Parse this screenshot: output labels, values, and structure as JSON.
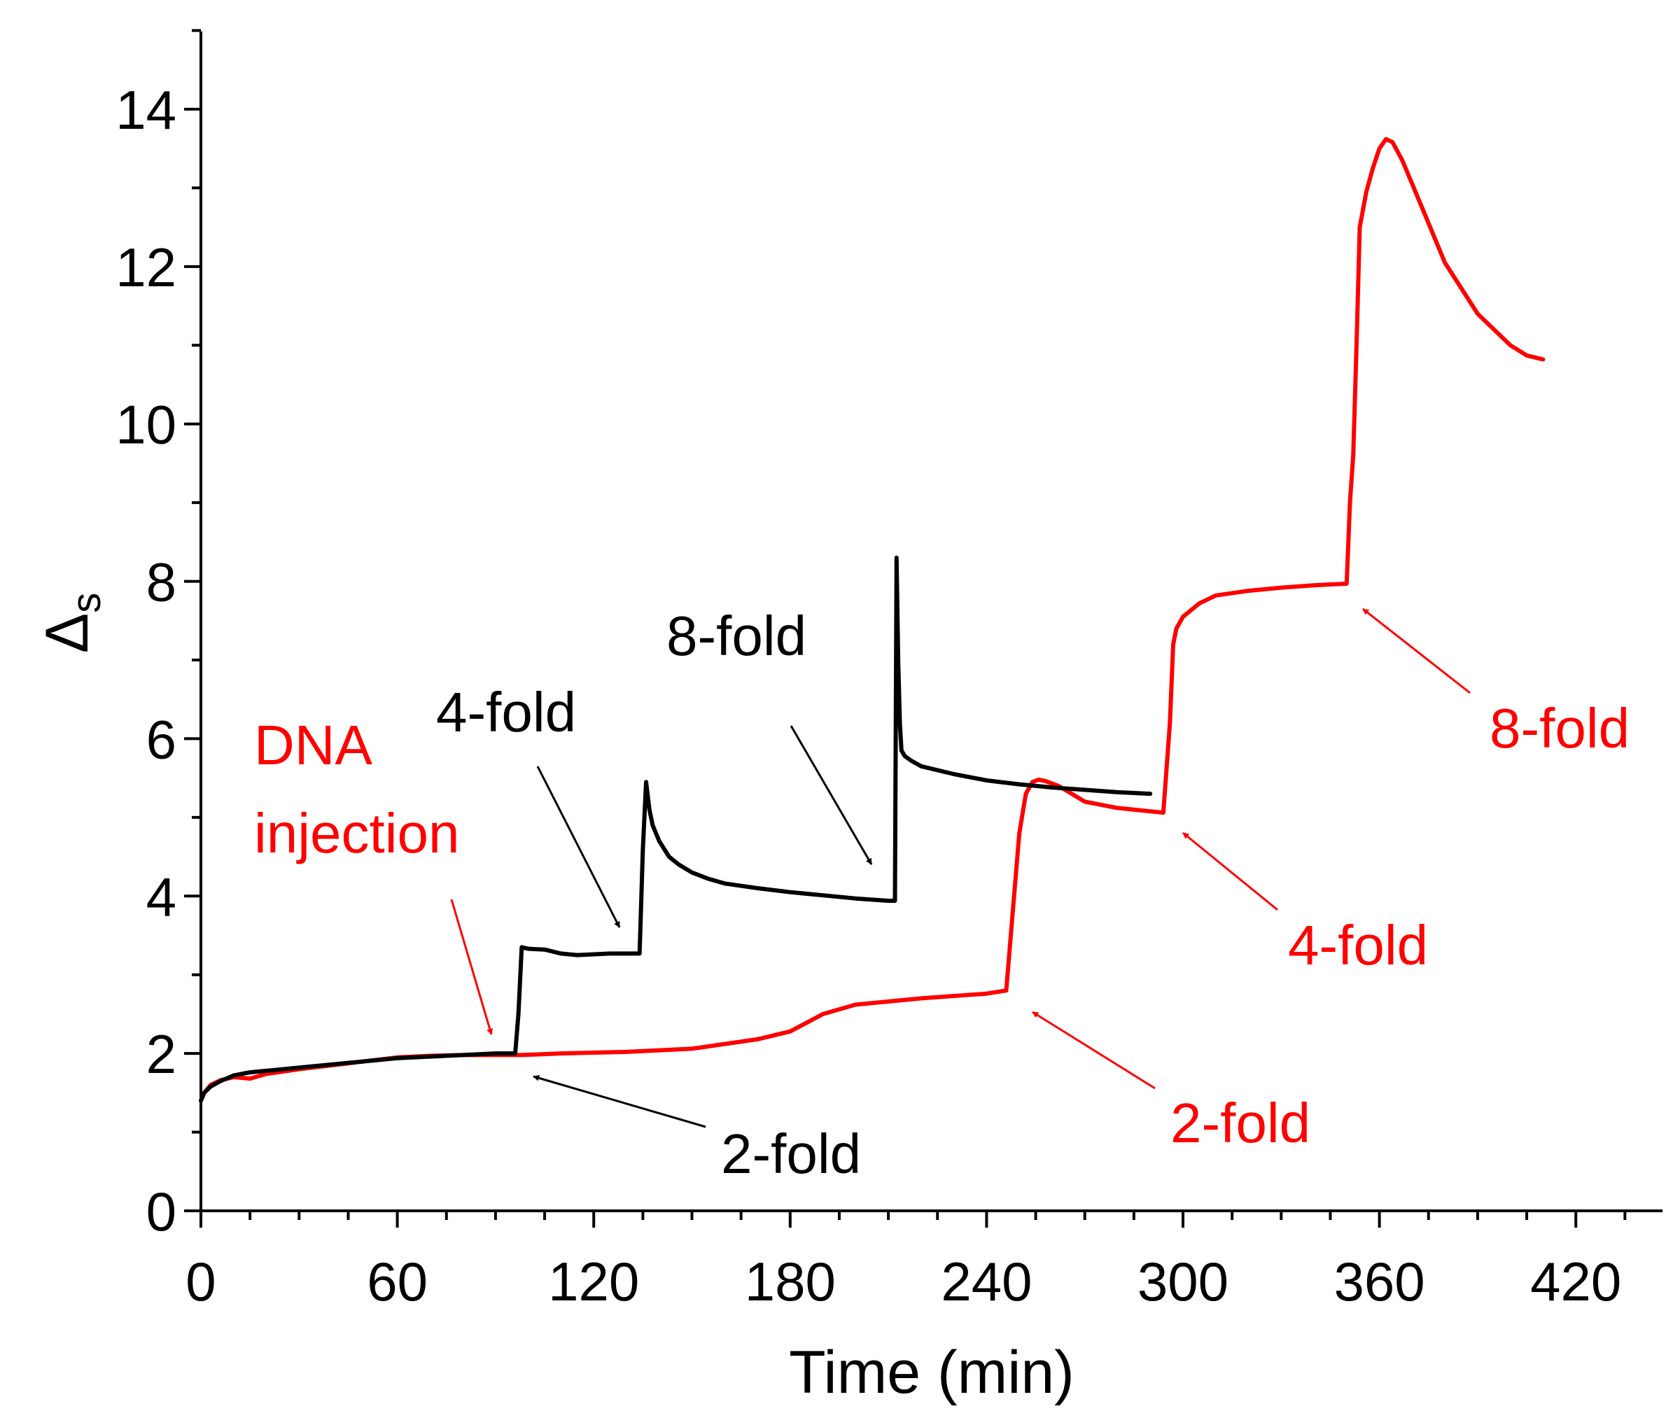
{
  "chart_data": {
    "type": "line",
    "title": "",
    "xlabel": "Time (min)",
    "ylabel": "Δ",
    "ylabel_subscript": "s",
    "xlim": [
      0,
      450
    ],
    "ylim": [
      0,
      15
    ],
    "xticks": [
      0,
      60,
      120,
      180,
      240,
      300,
      360,
      420
    ],
    "xtick_labels": [
      "0",
      "60",
      "120",
      "180",
      "240",
      "300",
      "360",
      "420"
    ],
    "yticks": [
      0,
      2,
      4,
      6,
      8,
      10,
      12,
      14
    ],
    "ytick_labels": [
      "0",
      "2",
      "4",
      "6",
      "8",
      "10",
      "12",
      "14"
    ],
    "grid": false,
    "series": [
      {
        "name": "black",
        "color": "#000000",
        "x": [
          0,
          1,
          3,
          6,
          10,
          15,
          20,
          30,
          40,
          50,
          60,
          70,
          80,
          90,
          96,
          97,
          98,
          100,
          105,
          110,
          115,
          120,
          125,
          130,
          134,
          135,
          136,
          137,
          138,
          140,
          143,
          146,
          150,
          155,
          160,
          170,
          180,
          190,
          200,
          210,
          212,
          212.5,
          213,
          213.5,
          214,
          215,
          217,
          220,
          230,
          240,
          250,
          260,
          270,
          280,
          290
        ],
        "values": [
          1.4,
          1.5,
          1.58,
          1.65,
          1.72,
          1.76,
          1.78,
          1.82,
          1.86,
          1.9,
          1.94,
          1.96,
          1.98,
          2.0,
          2.0,
          2.5,
          3.35,
          3.33,
          3.32,
          3.27,
          3.25,
          3.26,
          3.27,
          3.27,
          3.27,
          4.6,
          5.45,
          5.1,
          4.9,
          4.7,
          4.5,
          4.4,
          4.3,
          4.22,
          4.16,
          4.1,
          4.05,
          4.01,
          3.97,
          3.94,
          3.94,
          8.3,
          7.0,
          6.2,
          5.85,
          5.78,
          5.72,
          5.65,
          5.55,
          5.47,
          5.42,
          5.38,
          5.35,
          5.32,
          5.3
        ]
      },
      {
        "name": "red",
        "color": "#ff0000",
        "x": [
          0,
          1,
          3,
          6,
          10,
          15,
          20,
          30,
          40,
          50,
          60,
          70,
          80,
          90,
          98,
          110,
          130,
          150,
          170,
          180,
          190,
          200,
          220,
          240,
          246,
          248,
          250,
          252,
          254,
          256,
          258,
          262,
          266,
          270,
          280,
          294,
          296,
          297,
          298,
          300,
          305,
          310,
          320,
          330,
          340,
          350,
          351,
          352,
          353,
          354,
          356,
          358,
          360,
          362,
          364,
          367,
          370,
          375,
          380,
          390,
          400,
          405,
          410
        ],
        "values": [
          1.4,
          1.5,
          1.6,
          1.66,
          1.7,
          1.68,
          1.74,
          1.8,
          1.85,
          1.9,
          1.95,
          1.97,
          1.98,
          1.98,
          1.98,
          2.0,
          2.02,
          2.06,
          2.18,
          2.28,
          2.5,
          2.62,
          2.7,
          2.76,
          2.8,
          3.8,
          4.8,
          5.3,
          5.45,
          5.48,
          5.46,
          5.4,
          5.3,
          5.2,
          5.12,
          5.06,
          6.2,
          7.2,
          7.4,
          7.55,
          7.72,
          7.82,
          7.88,
          7.92,
          7.95,
          7.97,
          9.0,
          9.6,
          11.0,
          12.5,
          12.95,
          13.25,
          13.5,
          13.62,
          13.58,
          13.35,
          13.05,
          12.55,
          12.05,
          11.4,
          11.0,
          10.87,
          10.82
        ]
      }
    ],
    "annotations": [
      {
        "text": "DNA",
        "color": "#ff0000",
        "arrow_to": [
          93,
          2.0
        ]
      },
      {
        "text": "injection",
        "color": "#ff0000"
      },
      {
        "text": "4-fold",
        "color": "#000000",
        "arrow_to": [
          133,
          3.45
        ]
      },
      {
        "text": "8-fold",
        "color": "#000000",
        "arrow_to": [
          206,
          4.3
        ]
      },
      {
        "text": "2-fold",
        "color": "#000000",
        "arrow_to": [
          102,
          1.97
        ]
      },
      {
        "text": "2-fold",
        "color": "#ff0000",
        "arrow_to": [
          254,
          2.55
        ]
      },
      {
        "text": "4-fold",
        "color": "#ff0000",
        "arrow_to": [
          300,
          4.9
        ]
      },
      {
        "text": "8-fold",
        "color": "#ff0000",
        "arrow_to": [
          357,
          7.65
        ]
      }
    ]
  }
}
